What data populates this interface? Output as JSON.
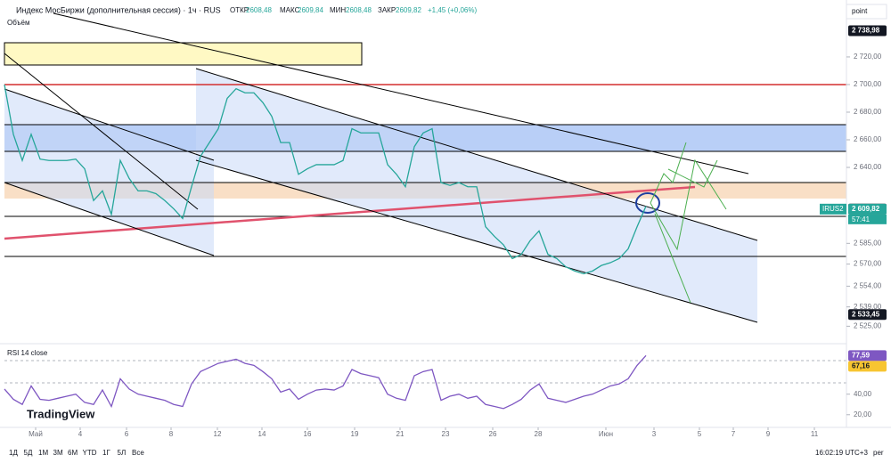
{
  "header": {
    "symbol": "Индекс МосБиржи (дополнительная сессия) · 1ч · RUS",
    "open_label": "ОТКР",
    "open": "2608,48",
    "high_label": "МАКС",
    "high": "2609,84",
    "low_label": "МИН",
    "low": "2608,48",
    "close_label": "ЗАКР",
    "close": "2609,82",
    "change": "+1,45 (+0,06%)",
    "volume": "Объём",
    "unit_button": "point"
  },
  "brand": "TradingView",
  "chart_data": [
    {
      "type": "line",
      "color": "#26a69a",
      "values": [
        2700,
        2664,
        2645,
        2664,
        2646,
        2645,
        2645,
        2645,
        2646,
        2639,
        2616,
        2623,
        2606,
        2645,
        2632,
        2623,
        2623,
        2621,
        2616,
        2610,
        2603,
        2626,
        2648,
        2658,
        2668,
        2690,
        2697,
        2694,
        2694,
        2687,
        2677,
        2658,
        2658,
        2635,
        2639,
        2642,
        2642,
        2642,
        2645,
        2668,
        2665,
        2665,
        2665,
        2642,
        2635,
        2626,
        2655,
        2665,
        2668,
        2629,
        2627,
        2629,
        2626,
        2626,
        2597,
        2590,
        2584,
        2574,
        2577,
        2587,
        2594,
        2577,
        2574,
        2568,
        2565,
        2563,
        2565,
        2569,
        2571,
        2574,
        2581,
        2597,
        2612
      ],
      "xlim": [
        0,
        94.5
      ],
      "ylim": [
        2513,
        2758
      ],
      "yticks": [
        {
          "value": 2720,
          "label": "2 720,00"
        },
        {
          "value": 2700,
          "label": "2 700,00"
        },
        {
          "value": 2680,
          "label": "2 680,00"
        },
        {
          "value": 2660,
          "label": "2 660,00"
        },
        {
          "value": 2640,
          "label": "2 640,00"
        },
        {
          "value": 2585,
          "label": "2 585,00"
        },
        {
          "value": 2570,
          "label": "2 570,00"
        },
        {
          "value": 2554,
          "label": "2 554,00"
        },
        {
          "value": 2539,
          "label": "2 539,00"
        },
        {
          "value": 2525,
          "label": "2 525,00"
        }
      ],
      "xticks": [
        {
          "value": 3.5,
          "label": "Май"
        },
        {
          "value": 8.5,
          "label": "4"
        },
        {
          "value": 13.7,
          "label": "6"
        },
        {
          "value": 18.7,
          "label": "8"
        },
        {
          "value": 23.9,
          "label": "12"
        },
        {
          "value": 28.9,
          "label": "14"
        },
        {
          "value": 34,
          "label": "16"
        },
        {
          "value": 39.3,
          "label": "19"
        },
        {
          "value": 44.4,
          "label": "21"
        },
        {
          "value": 49.5,
          "label": "23"
        },
        {
          "value": 54.8,
          "label": "26"
        },
        {
          "value": 59.9,
          "label": "28"
        },
        {
          "value": 67.5,
          "label": "Июн"
        },
        {
          "value": 72.9,
          "label": "3"
        },
        {
          "value": 78,
          "label": "5"
        },
        {
          "value": 81.8,
          "label": "7"
        },
        {
          "value": 85.7,
          "label": "9"
        },
        {
          "value": 90.9,
          "label": "11"
        }
      ],
      "price_labels": [
        {
          "value": 2738.98,
          "label": "2 738,98",
          "color": "#131722"
        },
        {
          "value": 2609.88,
          "label": "2 609,88",
          "color": "#131722"
        },
        {
          "value": 2609.82,
          "label": "2 609,82",
          "color": "#26a69a"
        },
        {
          "value": 2533.45,
          "label": "2 533,45",
          "color": "#131722"
        }
      ],
      "ticker": "IRUS2",
      "countdown": "57:41"
    },
    {
      "type": "line",
      "title": "RSI 14 close",
      "color": "#7e57c2",
      "values": [
        45,
        35,
        30,
        48,
        35,
        34,
        36,
        38,
        40,
        32,
        30,
        44,
        28,
        55,
        45,
        40,
        38,
        36,
        34,
        30,
        28,
        50,
        62,
        66,
        70,
        72,
        74,
        70,
        68,
        62,
        55,
        42,
        45,
        35,
        40,
        44,
        45,
        44,
        48,
        64,
        60,
        58,
        56,
        40,
        36,
        34,
        58,
        62,
        64,
        34,
        38,
        40,
        36,
        38,
        30,
        28,
        26,
        30,
        35,
        44,
        50,
        36,
        34,
        32,
        35,
        38,
        40,
        44,
        48,
        50,
        55,
        68,
        77.59
      ],
      "xlim": [
        0,
        94.5
      ],
      "ylim": [
        12,
        90
      ],
      "yticks": [
        {
          "value": 40,
          "label": "40,00"
        },
        {
          "value": 20,
          "label": "20,00"
        }
      ],
      "markers": [
        {
          "value": 77.59,
          "label": "77,59",
          "color": "#7e57c2"
        },
        {
          "value": 67.16,
          "label": "67,16",
          "color": "#f7c531"
        }
      ]
    }
  ],
  "toolbar": {
    "ranges": [
      "1Д",
      "5Д",
      "1М",
      "3М",
      "6М",
      "YTD",
      "1Г",
      "5Л",
      "Все"
    ],
    "time": "16:02:19 UTC+3",
    "scale": "per"
  }
}
